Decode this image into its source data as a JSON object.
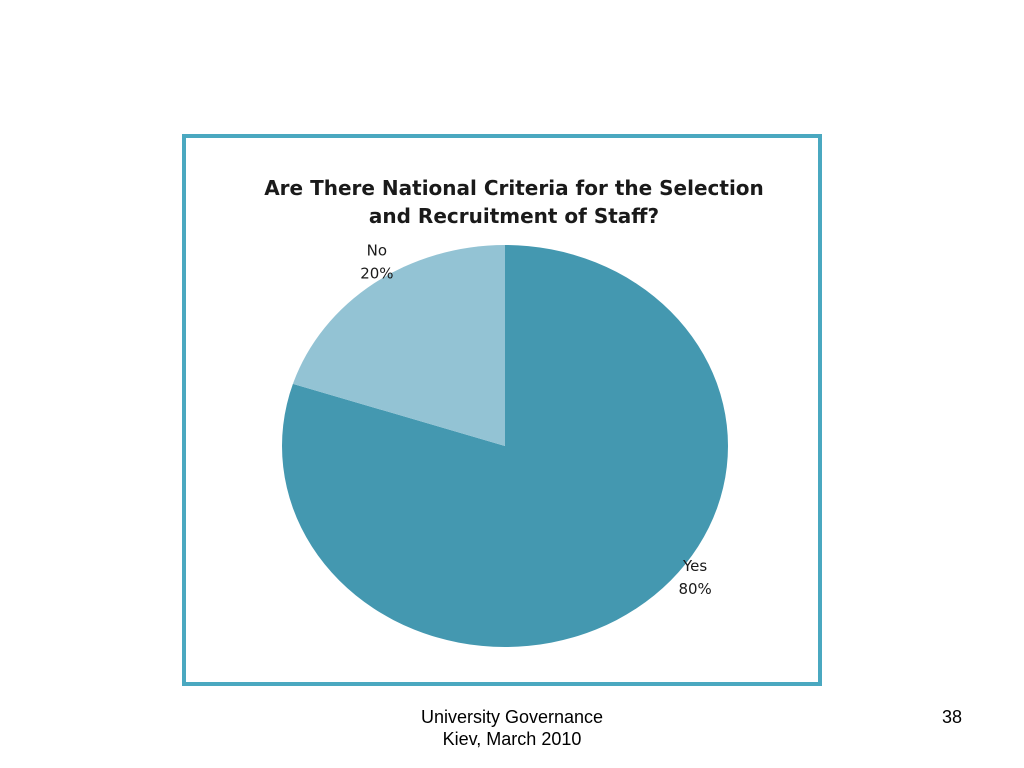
{
  "chart_data": {
    "type": "pie",
    "title_lines": [
      "Are There National Criteria for the Selection",
      "and Recruitment of Staff?"
    ],
    "slices": [
      {
        "label": "Yes",
        "value": 80,
        "value_label": "80%",
        "color": "#4498b0"
      },
      {
        "label": "No",
        "value": 20,
        "value_label": "20%",
        "color": "#93c3d4"
      }
    ]
  },
  "colors": {
    "frame_border": "#4aa8c0"
  },
  "footer": {
    "line1": "University Governance",
    "line2": "Kiev, March 2010"
  },
  "page_number": "38"
}
